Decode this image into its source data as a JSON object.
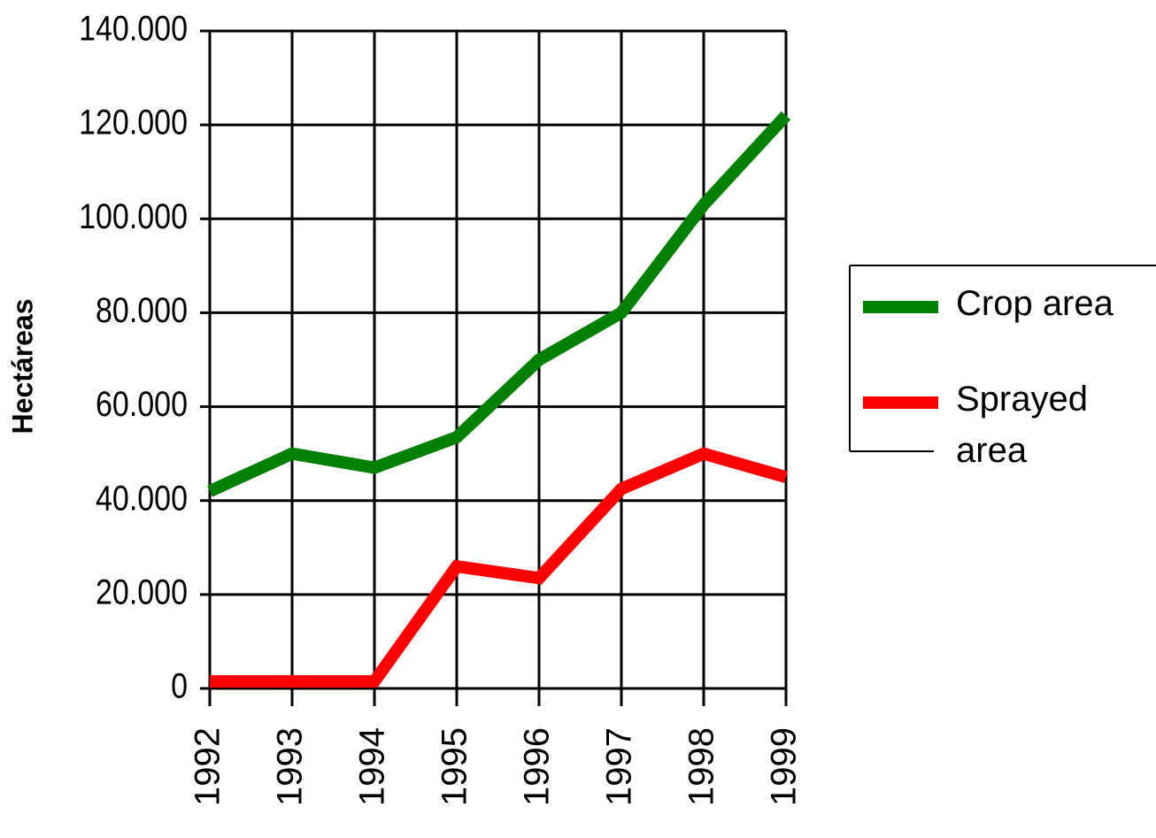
{
  "chart_data": {
    "type": "line",
    "y_label": "Hectáreas",
    "x": [
      1992,
      1993,
      1994,
      1995,
      1996,
      1997,
      1998,
      1999
    ],
    "xlim": [
      1992,
      1999
    ],
    "xticks": [
      1992,
      1993,
      1994,
      1995,
      1996,
      1997,
      1998,
      1999
    ],
    "ylim": [
      0,
      140000
    ],
    "yticks": [
      0,
      {
        "value": 20000,
        "label": "20.000"
      },
      {
        "value": 40000,
        "label": "40.000"
      },
      {
        "value": 60000,
        "label": "60.000"
      },
      {
        "value": 80000,
        "label": "80.000"
      },
      {
        "value": 100000,
        "label": "100.000"
      },
      {
        "value": 120000,
        "label": "120.000"
      },
      {
        "value": 140000,
        "label": "140.000"
      }
    ],
    "grid": true,
    "legend": "right",
    "series": [
      {
        "name": "Crop area",
        "color": "#008000",
        "values": [
          42000,
          50000,
          47000,
          53500,
          70000,
          80000,
          103000,
          122000
        ]
      },
      {
        "name": "Sprayed area",
        "color": "#ff0000",
        "values": [
          1500,
          1500,
          1500,
          26000,
          23500,
          42500,
          50000,
          45000
        ]
      }
    ]
  }
}
